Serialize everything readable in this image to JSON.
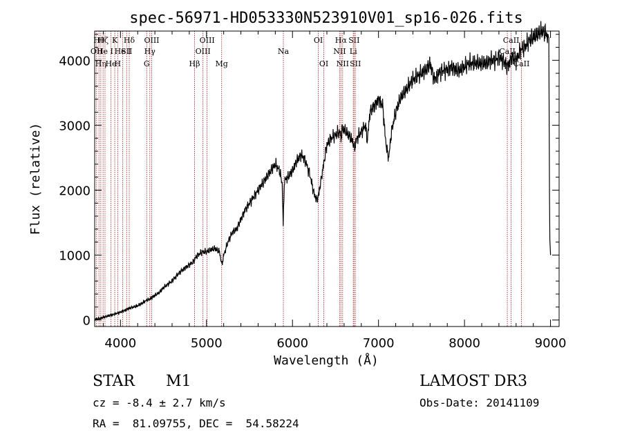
{
  "chart_data": {
    "type": "line",
    "title": "spec-56971-HD053330N523910V01_sp16-026.fits",
    "xlabel": "Wavelength (Å)",
    "ylabel": "Flux (relative)",
    "xlim": [
      3700,
      9100
    ],
    "ylim": [
      -100,
      4450
    ],
    "xticks": [
      4000,
      5000,
      6000,
      7000,
      8000,
      9000
    ],
    "yticks": [
      0,
      1000,
      2000,
      3000,
      4000
    ],
    "grid": false,
    "line_color": "#000000",
    "marker_color": "#b03030",
    "series": [
      {
        "name": "flux",
        "x": [
          3700,
          3750,
          3800,
          3850,
          3900,
          3950,
          4000,
          4050,
          4100,
          4150,
          4200,
          4250,
          4300,
          4350,
          4400,
          4450,
          4500,
          4550,
          4600,
          4650,
          4700,
          4750,
          4800,
          4850,
          4870,
          4900,
          4950,
          5000,
          5050,
          5100,
          5150,
          5180,
          5200,
          5250,
          5300,
          5350,
          5400,
          5450,
          5500,
          5550,
          5600,
          5650,
          5700,
          5750,
          5800,
          5850,
          5880,
          5892,
          5905,
          5950,
          6000,
          6050,
          6100,
          6150,
          6200,
          6250,
          6280,
          6300,
          6350,
          6400,
          6450,
          6500,
          6550,
          6563,
          6580,
          6620,
          6650,
          6700,
          6720,
          6750,
          6800,
          6850,
          6870,
          6900,
          6950,
          7000,
          7050,
          7080,
          7100,
          7120,
          7150,
          7200,
          7250,
          7300,
          7350,
          7400,
          7450,
          7500,
          7550,
          7600,
          7650,
          7700,
          7750,
          7800,
          7850,
          7900,
          7950,
          8000,
          8050,
          8100,
          8150,
          8200,
          8250,
          8300,
          8350,
          8400,
          8450,
          8500,
          8550,
          8600,
          8650,
          8700,
          8750,
          8800,
          8850,
          8900,
          8950,
          8980,
          8990,
          9000
        ],
        "y": [
          10,
          20,
          40,
          60,
          80,
          100,
          120,
          150,
          180,
          200,
          220,
          260,
          300,
          330,
          380,
          420,
          500,
          550,
          600,
          680,
          750,
          800,
          850,
          900,
          960,
          1000,
          1050,
          1050,
          1080,
          1100,
          1050,
          850,
          1000,
          1200,
          1350,
          1400,
          1550,
          1700,
          1800,
          1900,
          2000,
          2100,
          2200,
          2300,
          2400,
          2300,
          2100,
          1450,
          2150,
          2200,
          2300,
          2450,
          2550,
          2450,
          2250,
          1950,
          1850,
          1900,
          2300,
          2700,
          2800,
          2850,
          2900,
          2800,
          2950,
          2900,
          2850,
          2750,
          2650,
          2800,
          2900,
          3000,
          2750,
          3200,
          3300,
          3400,
          3300,
          2800,
          2600,
          2500,
          2900,
          3200,
          3400,
          3500,
          3600,
          3700,
          3750,
          3800,
          3850,
          3950,
          3700,
          3800,
          3850,
          3850,
          3900,
          3850,
          3850,
          3900,
          3950,
          3950,
          3950,
          3950,
          3950,
          4000,
          4000,
          4050,
          4000,
          3900,
          4050,
          4000,
          4150,
          4200,
          4300,
          4350,
          4400,
          4450,
          4400,
          4350,
          1300,
          1000
        ]
      }
    ],
    "line_markers": [
      {
        "x": 3722,
        "label": "OII",
        "row": 2
      },
      {
        "x": 3750,
        "label": "Hθ",
        "row": 1
      },
      {
        "x": 3771,
        "label": "Hη",
        "row": 3
      },
      {
        "x": 3798,
        "label": "Hζ",
        "row": 1
      },
      {
        "x": 3820,
        "label": "He I",
        "row": 2
      },
      {
        "x": 3889,
        "label": "He",
        "row": 3
      },
      {
        "x": 3934,
        "label": "K",
        "row": 1
      },
      {
        "x": 3968,
        "label": "H",
        "row": 3
      },
      {
        "x": 4026,
        "label": "He I",
        "row": 2
      },
      {
        "x": 4072,
        "label": "SII",
        "row": 2
      },
      {
        "x": 4102,
        "label": "Hδ",
        "row": 1
      },
      {
        "x": 4305,
        "label": "G",
        "row": 3
      },
      {
        "x": 4341,
        "label": "Hγ",
        "row": 2
      },
      {
        "x": 4363,
        "label": "OIII",
        "row": 1
      },
      {
        "x": 4861,
        "label": "Hβ",
        "row": 3
      },
      {
        "x": 4959,
        "label": "OIII",
        "row": 2
      },
      {
        "x": 5007,
        "label": "OIII",
        "row": 1
      },
      {
        "x": 5176,
        "label": "Mg",
        "row": 3
      },
      {
        "x": 5894,
        "label": "Na",
        "row": 2
      },
      {
        "x": 6300,
        "label": "OI",
        "row": 1
      },
      {
        "x": 6364,
        "label": "OI",
        "row": 3
      },
      {
        "x": 6548,
        "label": "NII",
        "row": 2
      },
      {
        "x": 6563,
        "label": "Hα",
        "row": 1
      },
      {
        "x": 6583,
        "label": "NII",
        "row": 3
      },
      {
        "x": 6707,
        "label": "Li",
        "row": 2
      },
      {
        "x": 6716,
        "label": "SII",
        "row": 1
      },
      {
        "x": 6731,
        "label": "SII",
        "row": 3
      },
      {
        "x": 8498,
        "label": "CaII",
        "row": 2
      },
      {
        "x": 8542,
        "label": "CaII",
        "row": 1
      },
      {
        "x": 8662,
        "label": "CaII",
        "row": 3
      }
    ]
  },
  "info": {
    "object_class": "STAR",
    "subclass": "M1",
    "survey": "LAMOST DR3",
    "cz": "cz = -8.4 ± 2.7 km/s",
    "obs_date": "Obs-Date: 20141109",
    "coords": "RA =  81.09755, DEC =  54.58224"
  }
}
